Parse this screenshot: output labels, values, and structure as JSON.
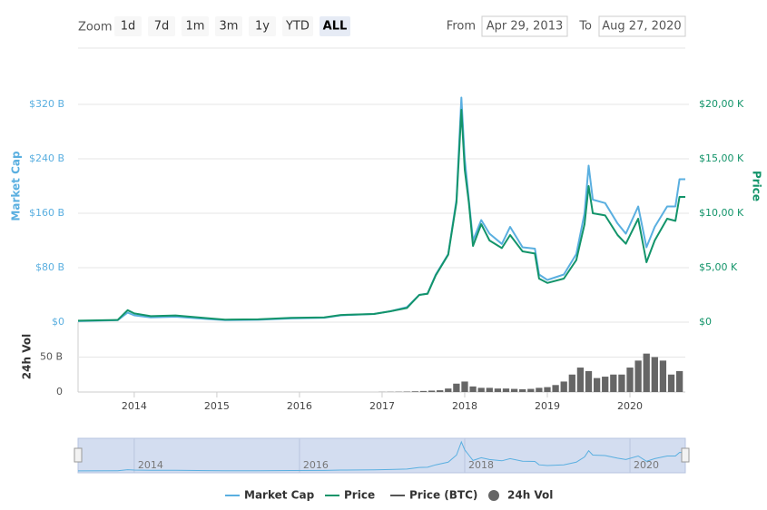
{
  "controls": {
    "zoom_label": "Zoom",
    "buttons": [
      "1d",
      "7d",
      "1m",
      "3m",
      "1y",
      "YTD",
      "ALL"
    ],
    "selected": "ALL",
    "from_label": "From",
    "from": "Apr 29, 2013",
    "to_label": "To",
    "to": "Aug 27, 2020"
  },
  "chart_data": [
    {
      "type": "line",
      "y_label": "Market Cap",
      "y2_label": "Price",
      "x": [
        2013.32,
        2013.8,
        2013.92,
        2014.0,
        2014.2,
        2014.5,
        2014.9,
        2015.1,
        2015.5,
        2015.9,
        2016.3,
        2016.5,
        2016.9,
        2017.1,
        2017.3,
        2017.45,
        2017.55,
        2017.65,
        2017.8,
        2017.9,
        2017.96,
        2018.0,
        2018.05,
        2018.1,
        2018.2,
        2018.3,
        2018.45,
        2018.55,
        2018.7,
        2018.85,
        2018.9,
        2019.0,
        2019.2,
        2019.35,
        2019.45,
        2019.5,
        2019.55,
        2019.7,
        2019.85,
        2019.95,
        2020.1,
        2020.2,
        2020.3,
        2020.45,
        2020.55,
        2020.6,
        2020.67
      ],
      "series": [
        {
          "name": "Market Cap",
          "color": "#5aafe0",
          "axis": "y",
          "values": [
            1.5,
            3,
            14,
            10,
            7,
            8,
            4.5,
            3,
            3.5,
            5.5,
            6.5,
            10,
            12,
            16,
            22,
            40,
            42,
            70,
            100,
            180,
            330,
            240,
            180,
            120,
            150,
            130,
            115,
            140,
            110,
            108,
            70,
            62,
            70,
            100,
            160,
            230,
            180,
            175,
            145,
            130,
            170,
            110,
            140,
            170,
            170,
            210,
            210
          ]
        },
        {
          "name": "Price",
          "color": "#13946a",
          "axis": "y2",
          "values": [
            130,
            200,
            1100,
            800,
            550,
            620,
            350,
            230,
            260,
            400,
            430,
            660,
            750,
            1000,
            1300,
            2500,
            2600,
            4300,
            6200,
            11000,
            19500,
            14000,
            11000,
            7000,
            9000,
            7500,
            6800,
            8000,
            6500,
            6300,
            4000,
            3600,
            4000,
            5700,
            9000,
            12500,
            10000,
            9800,
            8000,
            7200,
            9500,
            5500,
            7500,
            9500,
            9300,
            11500,
            11500
          ]
        },
        {
          "name": "Price (BTC)",
          "color": "#555555",
          "axis": "y3",
          "values": [
            null,
            null,
            null,
            null,
            null,
            null,
            null,
            null,
            null,
            null,
            null,
            null,
            null,
            null,
            null,
            null,
            null,
            null,
            null,
            null,
            null,
            null,
            null,
            null,
            null,
            null,
            null,
            null,
            null,
            null,
            null,
            null,
            null,
            null,
            null,
            null,
            null,
            null,
            null,
            null,
            null,
            null,
            null,
            null,
            null,
            null,
            null
          ]
        }
      ],
      "xlim": [
        2013.32,
        2020.67
      ],
      "ylim": [
        0,
        340
      ],
      "yticks": [
        {
          "value": 0,
          "label": "$0"
        },
        {
          "value": 80,
          "label": "$80 B"
        },
        {
          "value": 160,
          "label": "$160 B"
        },
        {
          "value": 240,
          "label": "$240 B"
        },
        {
          "value": 320,
          "label": "$320 B"
        }
      ],
      "y2lim": [
        0,
        21250
      ],
      "y2ticks": [
        {
          "value": 0,
          "label": "$0"
        },
        {
          "value": 5000,
          "label": "$5,00 K"
        },
        {
          "value": 10000,
          "label": "$10,00 K"
        },
        {
          "value": 15000,
          "label": "$15,00 K"
        },
        {
          "value": 20000,
          "label": "$20,00 K"
        }
      ],
      "grid": true
    },
    {
      "type": "bar",
      "y_label": "24h Vol",
      "x": [
        2017.0,
        2017.1,
        2017.2,
        2017.3,
        2017.4,
        2017.5,
        2017.6,
        2017.7,
        2017.8,
        2017.9,
        2018.0,
        2018.1,
        2018.2,
        2018.3,
        2018.4,
        2018.5,
        2018.6,
        2018.7,
        2018.8,
        2018.9,
        2019.0,
        2019.1,
        2019.2,
        2019.3,
        2019.4,
        2019.5,
        2019.6,
        2019.7,
        2019.8,
        2019.9,
        2020.0,
        2020.1,
        2020.2,
        2020.3,
        2020.4,
        2020.5,
        2020.6
      ],
      "series": [
        {
          "name": "24h Vol",
          "color": "#666666",
          "values": [
            0.2,
            0.3,
            0.4,
            0.6,
            1,
            1.5,
            2,
            2.5,
            5,
            12,
            15,
            8,
            6,
            6,
            5,
            5,
            4.5,
            4,
            4.5,
            6,
            7,
            10,
            15,
            25,
            35,
            30,
            20,
            22,
            25,
            25,
            35,
            45,
            55,
            50,
            45,
            25,
            30
          ]
        }
      ],
      "xlim": [
        2013.32,
        2020.67
      ],
      "xticks": [
        2014,
        2015,
        2016,
        2017,
        2018,
        2019,
        2020
      ],
      "ylim": [
        0,
        100
      ],
      "yticks": [
        0,
        {
          "value": 50,
          "label": "50 B"
        }
      ],
      "grid": true
    },
    {
      "type": "navigator",
      "xlim": [
        2013.32,
        2020.67
      ],
      "xticks": [
        2014,
        2016,
        2018,
        2020
      ]
    }
  ]
}
